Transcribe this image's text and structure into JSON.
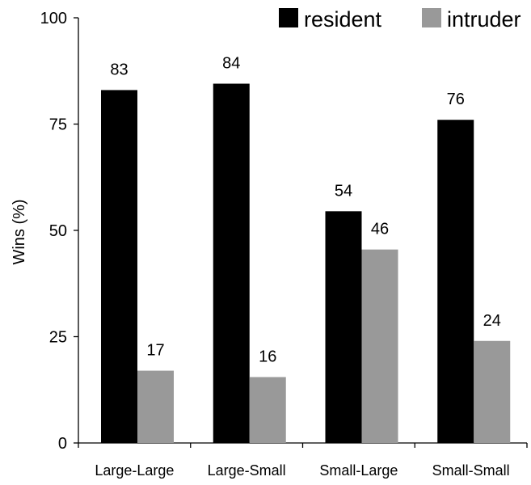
{
  "chart_data": {
    "type": "bar",
    "title": "",
    "xlabel": "",
    "ylabel": "Wins (%)",
    "ylim": [
      0,
      100
    ],
    "yticks": [
      0,
      25,
      50,
      75,
      100
    ],
    "grid": false,
    "legend_position": "top-right",
    "categories": [
      "Large-Large",
      "Large-Small",
      "Small-Large",
      "Small-Small"
    ],
    "series": [
      {
        "name": "resident",
        "color": "#000000",
        "values": [
          83,
          84.5,
          54.5,
          76
        ],
        "labels": [
          "83",
          "84",
          "54",
          "76"
        ]
      },
      {
        "name": "intruder",
        "color": "#999999",
        "values": [
          17,
          15.5,
          45.5,
          24
        ],
        "labels": [
          "17",
          "16",
          "46",
          "24"
        ]
      }
    ]
  }
}
